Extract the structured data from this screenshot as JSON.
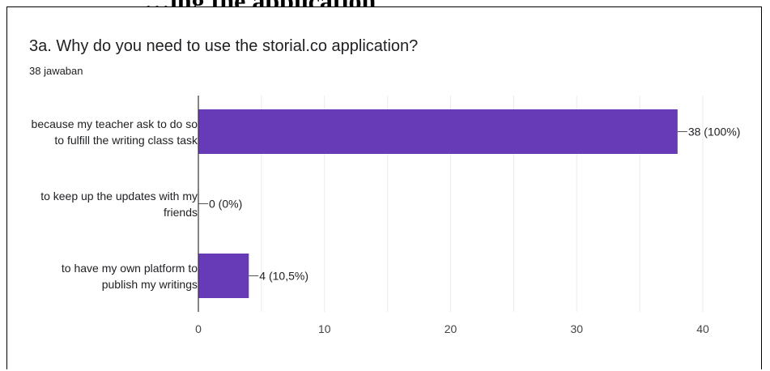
{
  "header_fragment": "…ing the application",
  "card": {
    "title": "3a. Why do you need to use the storial.co application?",
    "response_count": "38 jawaban"
  },
  "chart_data": {
    "type": "bar",
    "orientation": "horizontal",
    "categories": [
      [
        "because my teacher ask to do so",
        "to fulfill the writing class task"
      ],
      [
        "to keep up the updates with my",
        "friends"
      ],
      [
        "to have my own platform to",
        "publish my writings"
      ]
    ],
    "values": [
      38,
      0,
      4
    ],
    "value_labels": [
      "38 (100%)",
      "0 (0%)",
      "4 (10,5%)"
    ],
    "x_ticks": [
      "0",
      "10",
      "20",
      "30",
      "40"
    ],
    "xlim": [
      0,
      40
    ],
    "bar_color": "#673ab7",
    "grid": true
  },
  "colors": {
    "bar": "#673ab7",
    "grid": "#ebebeb",
    "text": "#202124"
  }
}
